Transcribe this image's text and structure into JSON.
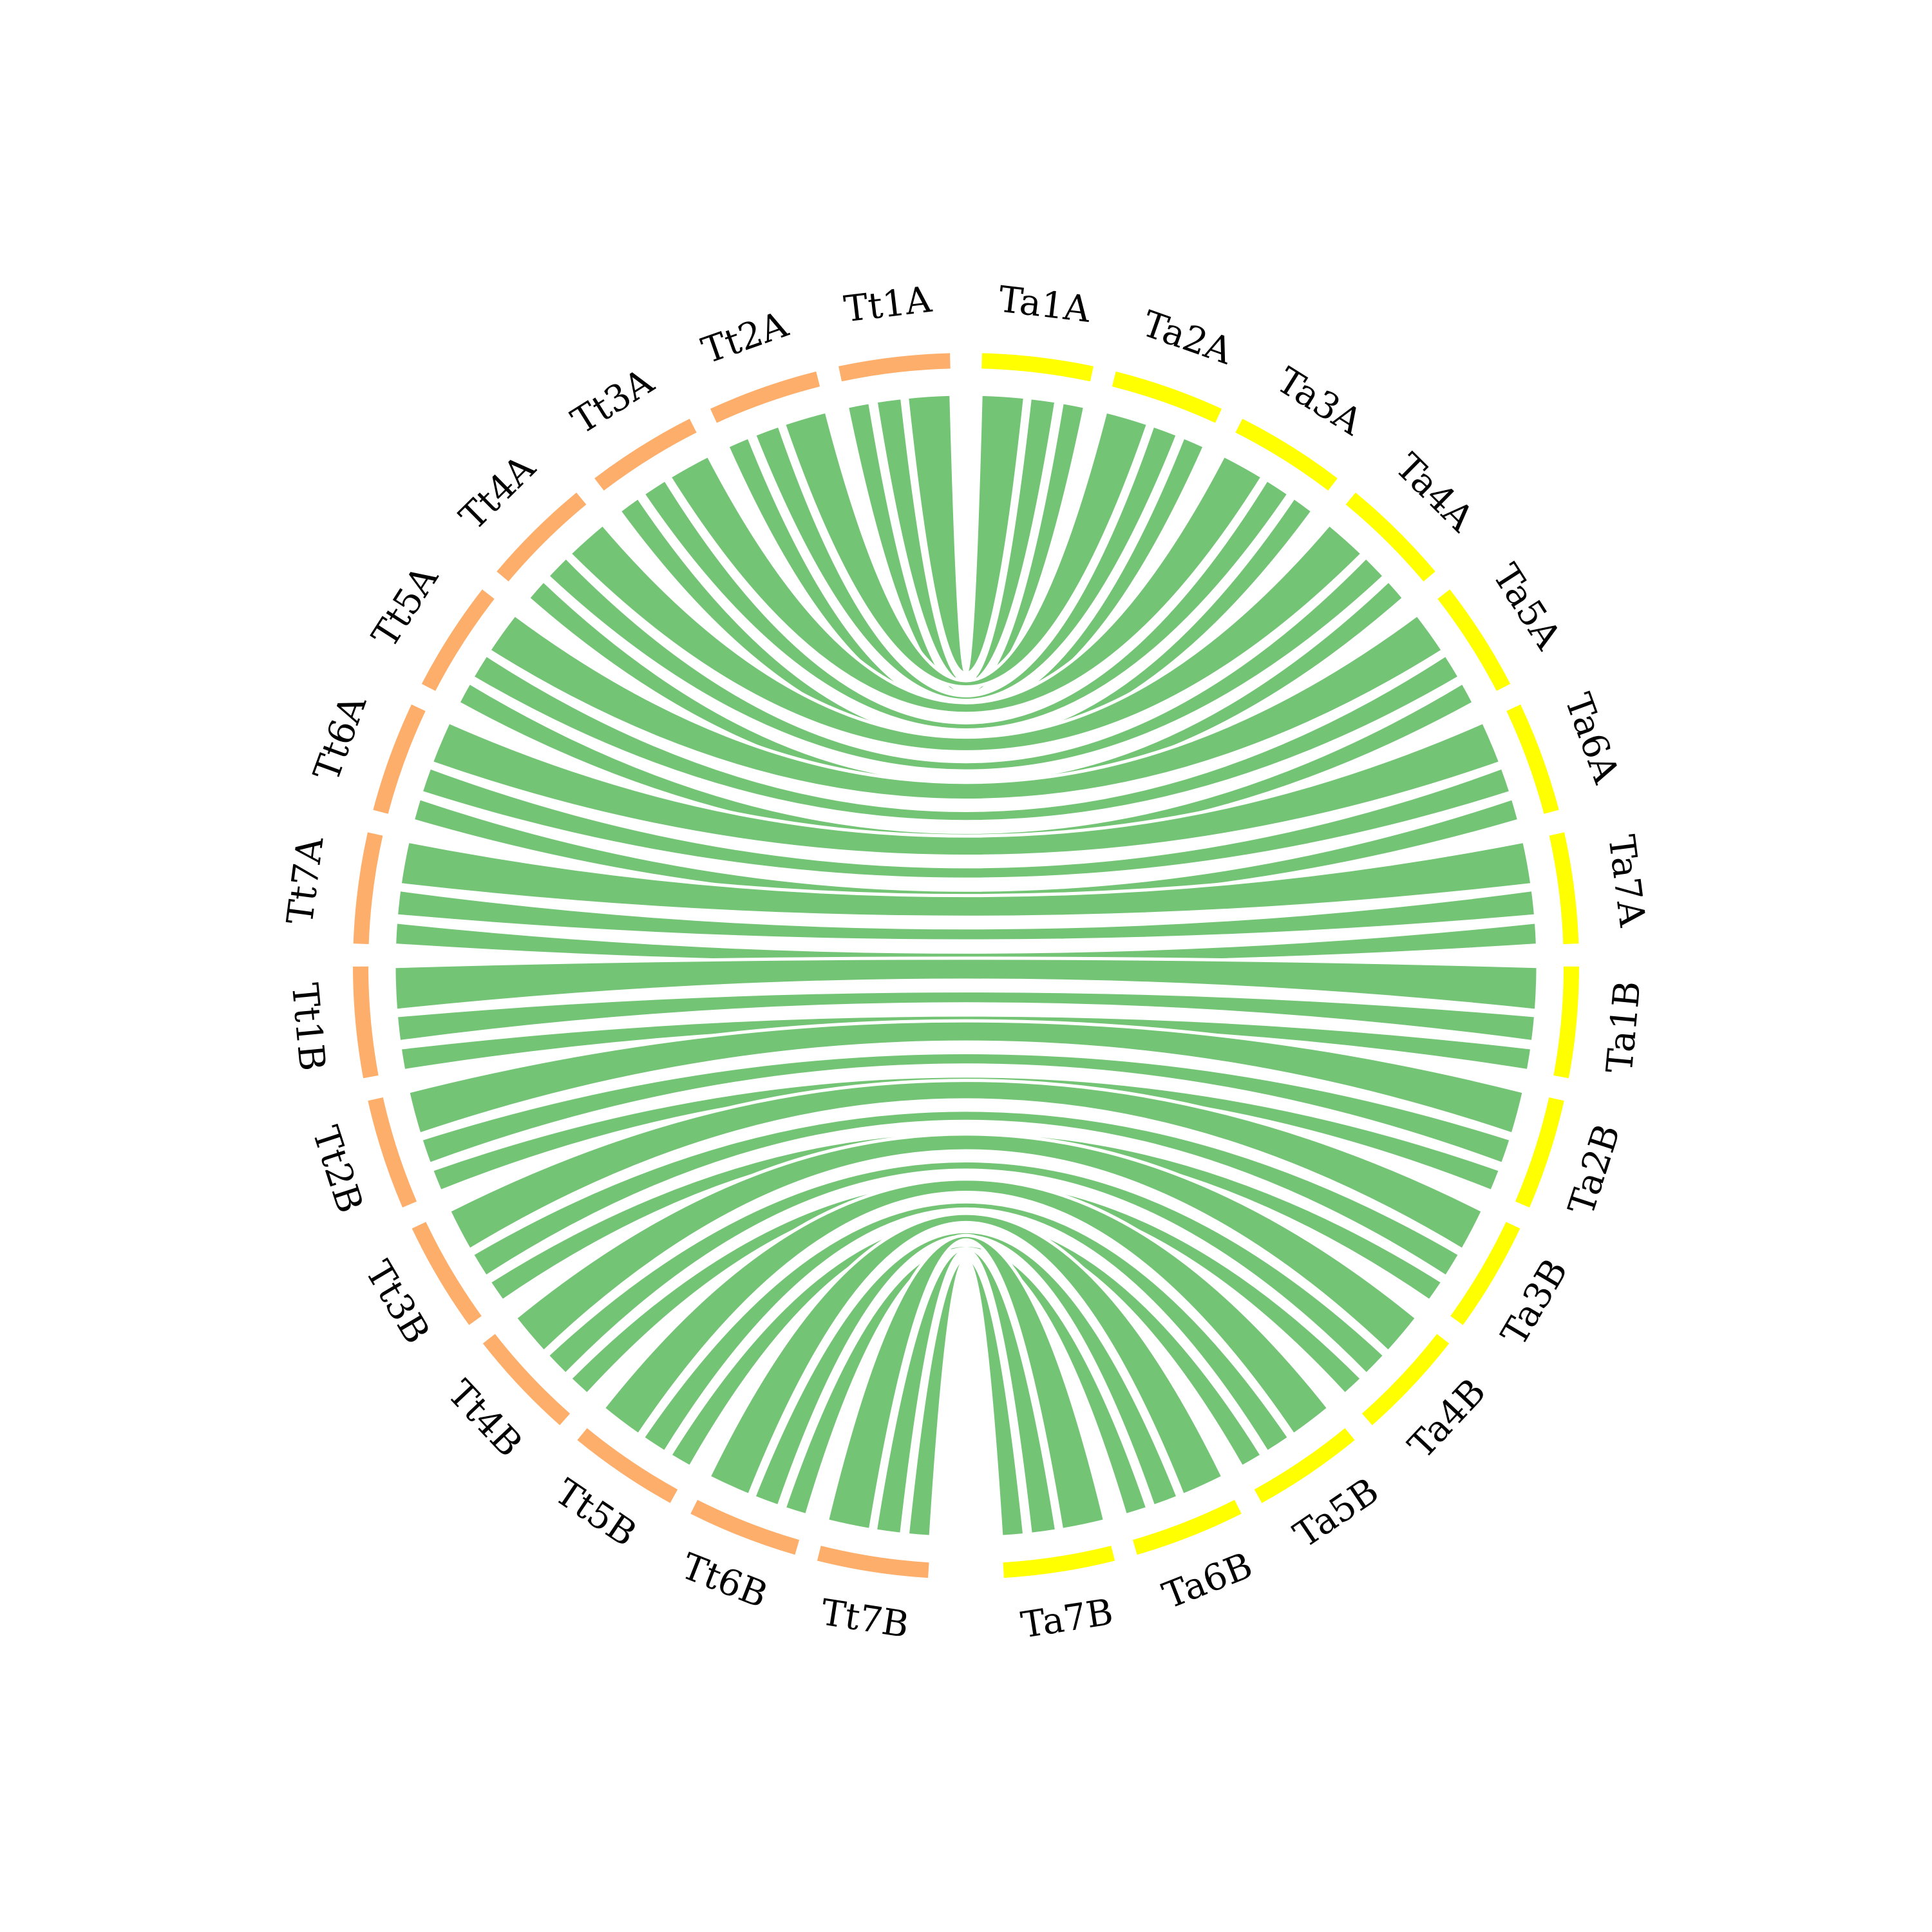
{
  "chromosomes": {
    "tt": [
      {
        "label": "Tt1A"
      },
      {
        "label": "Tt2A"
      },
      {
        "label": "Tt3A"
      },
      {
        "label": "Tt4A"
      },
      {
        "label": "Tt5A"
      },
      {
        "label": "Tt6A"
      },
      {
        "label": "Tt7A"
      },
      {
        "label": "Tt1B"
      },
      {
        "label": "Tt2B"
      },
      {
        "label": "Tt3B"
      },
      {
        "label": "Tt4B"
      },
      {
        "label": "Tt5B"
      },
      {
        "label": "Tt6B"
      },
      {
        "label": "Tt7B"
      }
    ],
    "ta": [
      {
        "label": "Ta1A"
      },
      {
        "label": "Ta2A"
      },
      {
        "label": "Ta3A"
      },
      {
        "label": "Ta4A"
      },
      {
        "label": "Ta5A"
      },
      {
        "label": "Ta6A"
      },
      {
        "label": "Ta7A"
      },
      {
        "label": "Ta1B"
      },
      {
        "label": "Ta2B"
      },
      {
        "label": "Ta3B"
      },
      {
        "label": "Ta4B"
      },
      {
        "label": "Ta5B"
      },
      {
        "label": "Ta6B"
      },
      {
        "label": "Ta7B"
      }
    ]
  }
}
